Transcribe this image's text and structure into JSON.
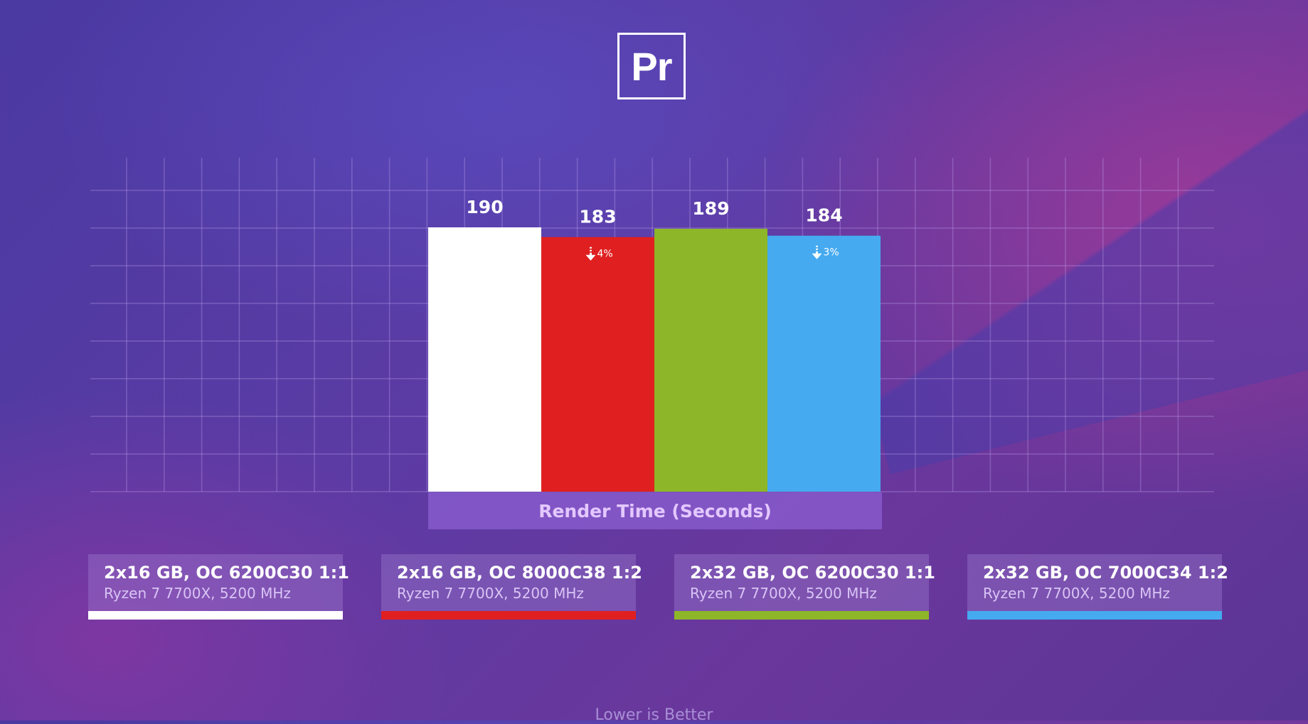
{
  "app_logo": "Pr",
  "colors": {
    "series": [
      "#ffffff",
      "#e02020",
      "#8db628",
      "#45aaf0"
    ],
    "grid": "rgba(190,160,235,0.35)"
  },
  "chart_data": {
    "type": "bar",
    "title": "",
    "xlabel": "Render Time (Seconds)",
    "ylabel": "",
    "ylim": [
      0,
      225
    ],
    "grid": true,
    "categories": [
      "2x16 GB, OC 6200C30 1:1",
      "2x16 GB, OC 8000C38 1:2",
      "2x32 GB, OC 6200C30 1:1",
      "2x32 GB, OC 7000C34 1:2"
    ],
    "values": [
      190,
      183,
      189,
      184
    ],
    "data_labels": [
      "190",
      "183",
      "189",
      "184"
    ],
    "annotations": [
      "",
      "4%",
      "",
      "3%"
    ],
    "footer": "Lower is Better"
  },
  "legend": [
    {
      "title": "2x16 GB, OC 6200C30 1:1",
      "subtitle": "Ryzen 7 7700X, 5200 MHz",
      "color": "#ffffff"
    },
    {
      "title": "2x16 GB, OC 8000C38 1:2",
      "subtitle": "Ryzen 7 7700X, 5200 MHz",
      "color": "#e02020"
    },
    {
      "title": "2x32 GB, OC 6200C30 1:1",
      "subtitle": "Ryzen 7 7700X, 5200 MHz",
      "color": "#8db628"
    },
    {
      "title": "2x32 GB, OC 7000C34 1:2",
      "subtitle": "Ryzen 7 7700X, 5200 MHz",
      "color": "#45aaf0"
    }
  ]
}
